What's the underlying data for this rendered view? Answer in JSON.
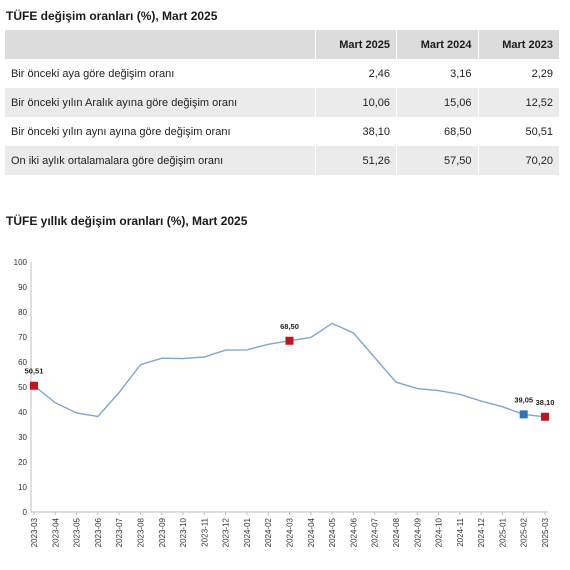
{
  "table": {
    "title": "TÜFE değişim oranları (%), Mart 2025",
    "columns": [
      "",
      "Mart 2025",
      "Mart 2024",
      "Mart 2023"
    ],
    "rows": [
      {
        "label": "Bir önceki aya göre değişim oranı",
        "values": [
          "2,46",
          "3,16",
          "2,29"
        ]
      },
      {
        "label": "Bir önceki yılın Aralık ayına göre değişim oranı",
        "values": [
          "10,06",
          "15,06",
          "12,52"
        ]
      },
      {
        "label": "Bir önceki yılın aynı ayına göre değişim oranı",
        "values": [
          "38,10",
          "68,50",
          "50,51"
        ]
      },
      {
        "label": "On iki aylık ortalamalara göre değişim oranı",
        "values": [
          "51,26",
          "57,50",
          "70,20"
        ]
      }
    ]
  },
  "chart_data": {
    "type": "line",
    "title": "TÜFE yıllık değişim oranları (%), Mart 2025",
    "ylim": [
      0,
      100
    ],
    "yticks": [
      0,
      10,
      20,
      30,
      40,
      50,
      60,
      70,
      80,
      90,
      100
    ],
    "grid": false,
    "line_color": "#7fa7cf",
    "x": [
      "2023-03",
      "2023-04",
      "2023-05",
      "2023-06",
      "2023-07",
      "2023-08",
      "2023-09",
      "2023-10",
      "2023-11",
      "2023-12",
      "2024-01",
      "2024-02",
      "2024-03",
      "2024-04",
      "2024-05",
      "2024-06",
      "2024-07",
      "2024-08",
      "2024-09",
      "2024-10",
      "2024-11",
      "2024-12",
      "2025-01",
      "2025-02",
      "2025-03"
    ],
    "series": [
      {
        "values": [
          50.51,
          43.68,
          39.59,
          38.21,
          47.83,
          58.94,
          61.53,
          61.36,
          61.98,
          64.77,
          64.86,
          67.07,
          68.5,
          69.8,
          75.45,
          71.6,
          61.78,
          51.97,
          49.38,
          48.58,
          47.09,
          44.38,
          42.12,
          39.05,
          38.1
        ]
      }
    ],
    "markers": [
      {
        "x": "2023-03",
        "value": 50.51,
        "label": "50,51",
        "color": "#c0151b"
      },
      {
        "x": "2024-03",
        "value": 68.5,
        "label": "68,50",
        "color": "#c0151b"
      },
      {
        "x": "2025-02",
        "value": 39.05,
        "label": "39,05",
        "color": "#2e75b6"
      },
      {
        "x": "2025-03",
        "value": 38.1,
        "label": "38,10",
        "color": "#c0151b"
      }
    ]
  }
}
